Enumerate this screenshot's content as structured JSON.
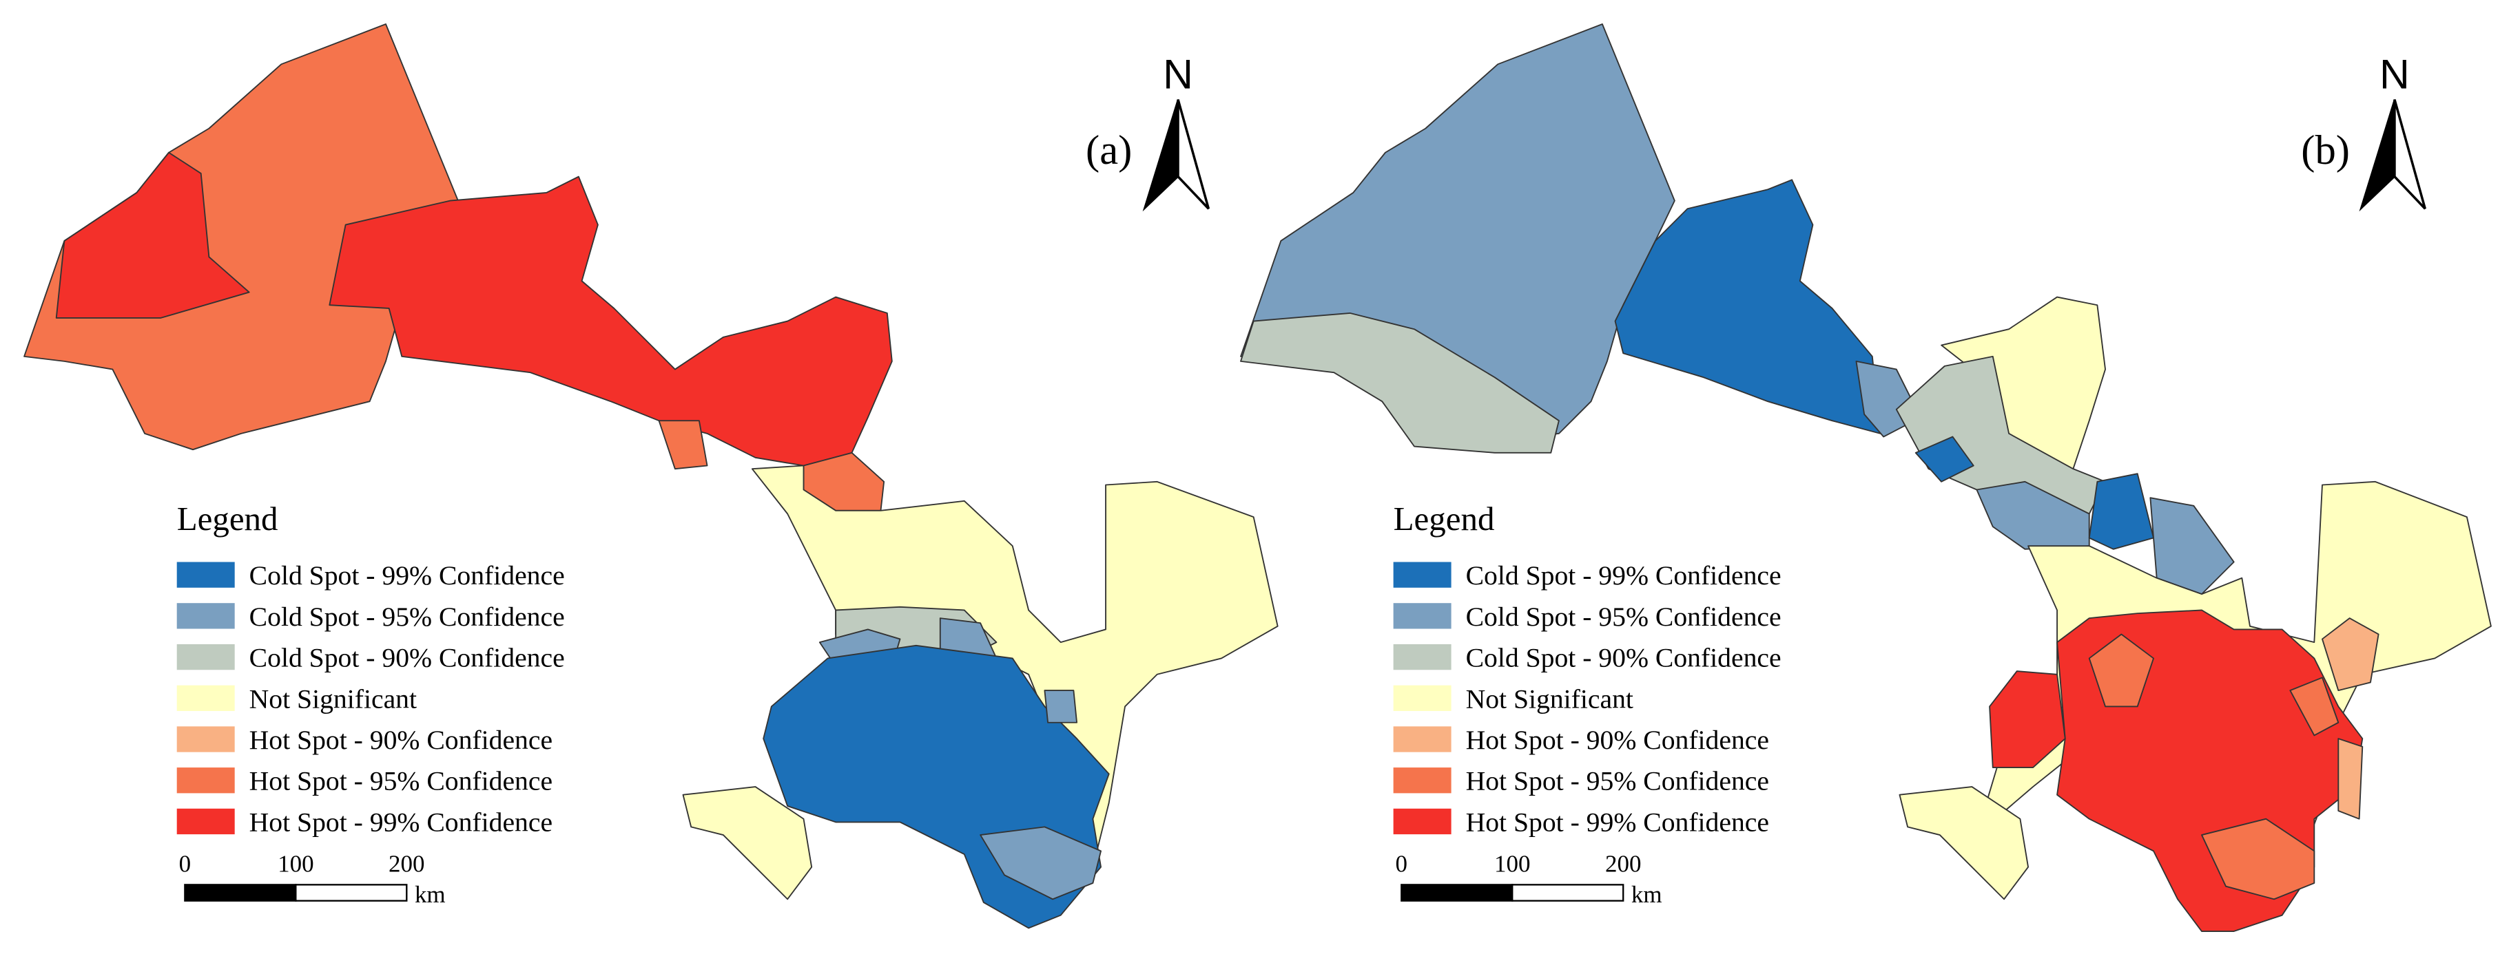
{
  "panels": [
    {
      "label": "(a)",
      "north": "N",
      "legend": {
        "title": "Legend",
        "items": [
          {
            "name": "Cold Spot - 99% Confidence",
            "color": "#1c70b8"
          },
          {
            "name": "Cold Spot - 95% Confidence",
            "color": "#7a9fc0"
          },
          {
            "name": "Cold Spot - 90% Confidence",
            "color": "#bfcbbf"
          },
          {
            "name": "Not Significant",
            "color": "#ffffc0"
          },
          {
            "name": "Hot Spot - 90% Confidence",
            "color": "#f9b183"
          },
          {
            "name": "Hot Spot - 95% Confidence",
            "color": "#f5744c"
          },
          {
            "name": "Hot Spot - 99% Confidence",
            "color": "#f3302a"
          }
        ]
      },
      "scale_bar": {
        "ticks": [
          0,
          100,
          200
        ],
        "unit": "km"
      }
    },
    {
      "label": "(b)",
      "north": "N",
      "legend": {
        "title": "Legend",
        "items": [
          {
            "name": "Cold Spot - 99% Confidence",
            "color": "#1c70b8"
          },
          {
            "name": "Cold Spot - 95% Confidence",
            "color": "#7a9fc0"
          },
          {
            "name": "Cold Spot - 90% Confidence",
            "color": "#bfcbbf"
          },
          {
            "name": "Not Significant",
            "color": "#ffffc0"
          },
          {
            "name": "Hot Spot - 90% Confidence",
            "color": "#f9b183"
          },
          {
            "name": "Hot Spot - 95% Confidence",
            "color": "#f5744c"
          },
          {
            "name": "Hot Spot - 99% Confidence",
            "color": "#f3302a"
          }
        ]
      },
      "scale_bar": {
        "ticks": [
          0,
          100,
          200
        ],
        "unit": "km"
      }
    }
  ]
}
